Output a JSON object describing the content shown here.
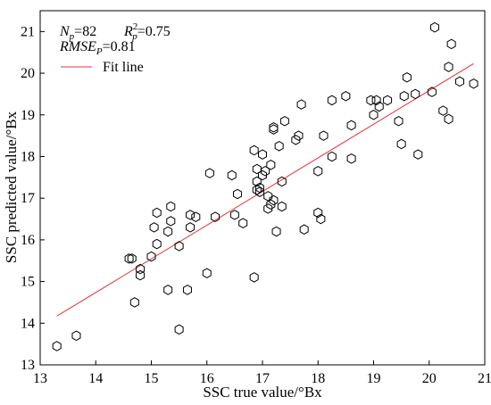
{
  "chart_data": {
    "type": "scatter",
    "xlabel": "SSC true value/°Bx",
    "ylabel": "SSC predicted value/°Bx",
    "xlim": [
      13,
      21
    ],
    "ylim": [
      13,
      21.5
    ],
    "xticks": [
      13,
      14,
      15,
      16,
      17,
      18,
      19,
      20,
      21
    ],
    "yticks": [
      13,
      14,
      15,
      16,
      17,
      18,
      19,
      20,
      21
    ],
    "grid": false,
    "marker": "hexagon-open",
    "stats": {
      "np_label": "N",
      "np_sub": "p",
      "np_value": "=82",
      "r2_label": "R",
      "r2_sub": "p",
      "r2_sup": "2",
      "r2_value": "=0.75",
      "rmse_label": "RMSE",
      "rmse_sub": "P",
      "rmse_value": "=0.81"
    },
    "legend": {
      "label": "Fit line",
      "placement": "top-left",
      "color": "#e8333a"
    },
    "fit_line": {
      "x": [
        13.3,
        20.8
      ],
      "y": [
        14.17,
        20.23
      ]
    },
    "series": [
      {
        "x": [
          13.3,
          13.65,
          14.6,
          14.65,
          14.7,
          14.8,
          14.8,
          15.0,
          15.05,
          15.1,
          15.1,
          15.3,
          15.3,
          15.35,
          15.35,
          15.5,
          15.5,
          15.65,
          15.7,
          15.7,
          15.8,
          16.0,
          16.05,
          16.15,
          16.45,
          16.5,
          16.55,
          16.65,
          16.85,
          16.85,
          16.9,
          16.9,
          16.9,
          16.95,
          16.95,
          17.0,
          17.0,
          17.05,
          17.1,
          17.1,
          17.15,
          17.15,
          17.2,
          17.2,
          17.2,
          17.25,
          17.3,
          17.35,
          17.35,
          17.4,
          17.6,
          17.65,
          17.7,
          17.75,
          18.0,
          18.0,
          18.05,
          18.1,
          18.25,
          18.25,
          18.5,
          18.6,
          18.6,
          18.95,
          19.0,
          19.05,
          19.1,
          19.25,
          19.45,
          19.5,
          19.55,
          19.6,
          19.75,
          19.8,
          20.05,
          20.1,
          20.25,
          20.35,
          20.35,
          20.4,
          20.55,
          20.8
        ],
        "y": [
          13.45,
          13.7,
          15.55,
          15.55,
          14.5,
          15.15,
          15.3,
          15.6,
          16.3,
          16.65,
          15.9,
          14.8,
          16.2,
          16.45,
          16.8,
          13.85,
          15.85,
          14.8,
          16.3,
          16.6,
          16.55,
          15.2,
          17.6,
          16.55,
          17.55,
          16.6,
          17.1,
          16.4,
          15.1,
          18.15,
          17.7,
          17.4,
          17.2,
          17.15,
          17.25,
          18.05,
          17.55,
          17.65,
          17.05,
          16.75,
          17.8,
          16.85,
          18.65,
          18.7,
          16.95,
          16.2,
          18.25,
          17.4,
          16.8,
          18.85,
          18.4,
          18.5,
          19.25,
          16.25,
          16.65,
          17.65,
          16.5,
          18.5,
          19.35,
          18.0,
          19.45,
          18.75,
          17.95,
          19.35,
          19.0,
          19.35,
          19.2,
          19.35,
          18.85,
          18.3,
          19.45,
          19.9,
          19.5,
          18.05,
          19.55,
          21.1,
          19.1,
          20.15,
          18.9,
          20.7,
          19.8,
          19.75
        ]
      }
    ]
  }
}
